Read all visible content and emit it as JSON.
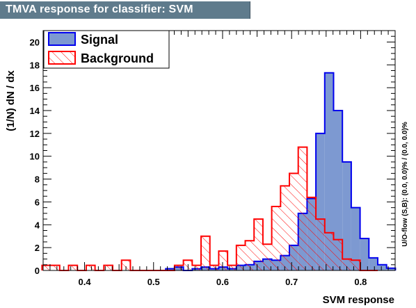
{
  "header": {
    "title": "TMVA response for classifier: SVM"
  },
  "side_note": "U/O-flow (S,B): (0.0, 0.0)% / (0.0, 0.0)%",
  "colors": {
    "signal_fill": "#7d99d1",
    "signal_line": "#0000ee",
    "background_line": "#ff0000",
    "title_bg": "#5f7b8c"
  },
  "chart_data": {
    "type": "bar",
    "title": "TMVA response for classifier: SVM",
    "xlabel": "SVM response",
    "ylabel": "(1/N)  dN / dx",
    "xlim": [
      0.34,
      0.85
    ],
    "ylim": [
      0,
      21
    ],
    "bin_width": 0.0128,
    "x_ticks": [
      0.4,
      0.5,
      0.6,
      0.7,
      0.8
    ],
    "x_tick_labels": [
      "0.4",
      "0.5",
      "0.6",
      "0.7",
      "0.8"
    ],
    "y_ticks": [
      0,
      2,
      4,
      6,
      8,
      10,
      12,
      14,
      16,
      18,
      20
    ],
    "y_tick_labels": [
      "0",
      "2",
      "4",
      "6",
      "8",
      "10",
      "12",
      "14",
      "16",
      "18",
      "20"
    ],
    "legend_position": "top-left",
    "series": [
      {
        "name": "Signal",
        "style": "filled",
        "bin_starts": [
          0.5176,
          0.5304,
          0.5432,
          0.556,
          0.5688,
          0.5816,
          0.5944,
          0.6072,
          0.62,
          0.6328,
          0.6456,
          0.6584,
          0.6712,
          0.684,
          0.6968,
          0.7096,
          0.7224,
          0.7352,
          0.748,
          0.7608,
          0.7736,
          0.7864,
          0.7992,
          0.812,
          0.8248,
          0.8376
        ],
        "values": [
          0.15,
          0.3,
          0.0,
          0.15,
          0.3,
          0.15,
          0.3,
          0.15,
          0.45,
          0.5,
          0.8,
          1.0,
          0.9,
          1.3,
          2.2,
          5.0,
          6.3,
          12.0,
          17.3,
          14.0,
          9.5,
          5.5,
          2.8,
          1.1,
          0.5,
          0.2
        ]
      },
      {
        "name": "Background",
        "style": "hatched",
        "bin_starts": [
          0.3384,
          0.3512,
          0.364,
          0.3768,
          0.3896,
          0.4024,
          0.4152,
          0.428,
          0.4408,
          0.4536,
          0.4664,
          0.4792,
          0.492,
          0.5048,
          0.5176,
          0.5304,
          0.5432,
          0.556,
          0.5688,
          0.5816,
          0.5944,
          0.6072,
          0.62,
          0.6328,
          0.6456,
          0.6584,
          0.6712,
          0.684,
          0.6968,
          0.7096,
          0.7224,
          0.7352,
          0.748,
          0.7608,
          0.7736,
          0.7864,
          0.7992,
          0.812
        ],
        "values": [
          0.45,
          0.45,
          0.0,
          0.45,
          0.0,
          0.45,
          0.0,
          0.45,
          0.0,
          0.9,
          0.0,
          0.0,
          0.0,
          0.0,
          0.0,
          0.45,
          0.9,
          0.45,
          3.0,
          0.45,
          1.7,
          0.45,
          2.2,
          2.6,
          4.5,
          2.3,
          5.6,
          7.4,
          8.5,
          10.8,
          6.4,
          4.5,
          3.3,
          2.7,
          1.0,
          0.9,
          0.0,
          0.0
        ]
      }
    ]
  }
}
